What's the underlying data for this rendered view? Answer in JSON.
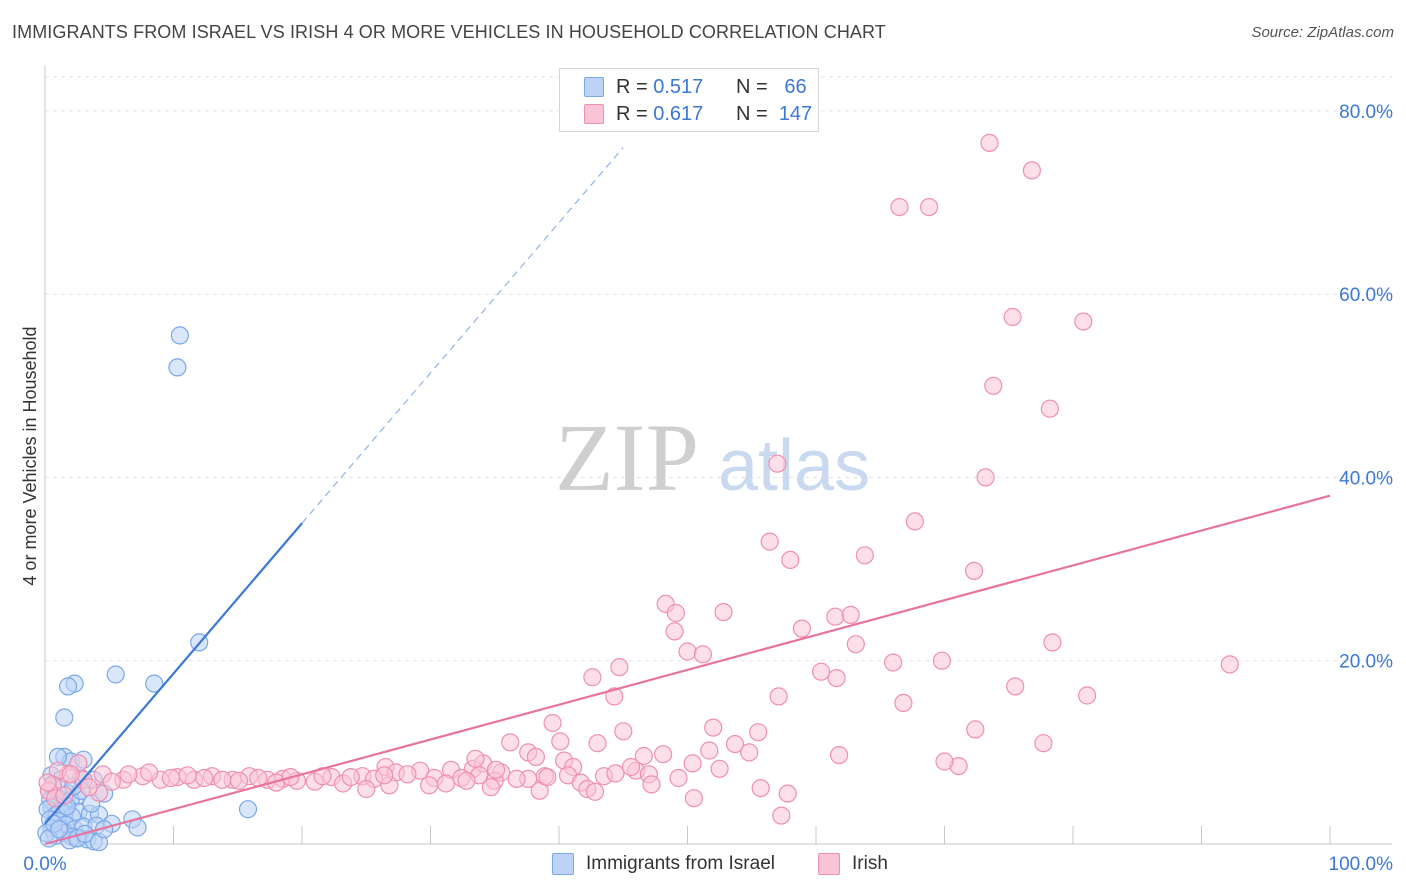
{
  "title": "IMMIGRANTS FROM ISRAEL VS IRISH 4 OR MORE VEHICLES IN HOUSEHOLD CORRELATION CHART",
  "source": "Source: ZipAtlas.com",
  "legend": {
    "r_label": "R =",
    "n_label": "N =",
    "rows": [
      {
        "name": "Immigrants from Israel",
        "r": "0.517",
        "n": "66",
        "color": "#7aa8e8",
        "fill": "#bcd3f5"
      },
      {
        "name": "Irish",
        "r": "0.617",
        "n": "147",
        "color": "#f08fb0",
        "fill": "#f9c5d6"
      }
    ]
  },
  "watermark": {
    "zip": "ZIP",
    "atlas": "atlas"
  },
  "chart_data": {
    "type": "scatter",
    "xlabel": "",
    "ylabel": "4 or more Vehicles in Household",
    "xlim": [
      0,
      100
    ],
    "ylim": [
      0,
      85
    ],
    "x_tick_labels": [
      "0.0%",
      "100.0%"
    ],
    "y_ticks": [
      20,
      40,
      60,
      80
    ],
    "y_tick_labels": [
      "20.0%",
      "40.0%",
      "60.0%",
      "80.0%"
    ],
    "grid": true,
    "series": [
      {
        "name": "Immigrants from Israel",
        "color": "#3c78d8",
        "trend": {
          "x0": 0,
          "y0": 2.2,
          "x1": 20,
          "y1": 35,
          "dashed_to_x": 45,
          "dashed_to_y": 76
        },
        "points": [
          [
            10.5,
            55.5
          ],
          [
            10.3,
            52
          ],
          [
            12,
            22
          ],
          [
            5.5,
            18.5
          ],
          [
            8.5,
            17.5
          ],
          [
            2.3,
            17.5
          ],
          [
            1.8,
            17.2
          ],
          [
            1.5,
            13.8
          ],
          [
            1.5,
            9.5
          ],
          [
            2,
            9
          ],
          [
            3,
            9.2
          ],
          [
            1,
            9.5
          ],
          [
            0.5,
            7.5
          ],
          [
            2.8,
            7.2
          ],
          [
            1.2,
            7
          ],
          [
            3.8,
            7
          ],
          [
            0.6,
            6.5
          ],
          [
            0.3,
            5.8
          ],
          [
            1.8,
            5.5
          ],
          [
            2.5,
            5.2
          ],
          [
            4.6,
            5.5
          ],
          [
            1,
            5
          ],
          [
            2,
            4.8
          ],
          [
            0.4,
            4.8
          ],
          [
            1.4,
            4.5
          ],
          [
            0.8,
            4.2
          ],
          [
            0.5,
            4
          ],
          [
            1.6,
            3.8
          ],
          [
            2.6,
            3.5
          ],
          [
            1.2,
            3.6
          ],
          [
            0.2,
            3.8
          ],
          [
            0.9,
            3.2
          ],
          [
            1.5,
            3.3
          ],
          [
            2.1,
            3
          ],
          [
            3.5,
            3.3
          ],
          [
            4.2,
            3.2
          ],
          [
            0.4,
            2.7
          ],
          [
            1,
            2.5
          ],
          [
            1.6,
            2.1
          ],
          [
            2.3,
            1.6
          ],
          [
            3,
            1.9
          ],
          [
            4,
            2
          ],
          [
            5.2,
            2.2
          ],
          [
            6.8,
            2.7
          ],
          [
            7.2,
            1.8
          ],
          [
            0.5,
            1.7
          ],
          [
            1.5,
            1.2
          ],
          [
            2.1,
            0.8
          ],
          [
            2.6,
            0.7
          ],
          [
            3.3,
            0.5
          ],
          [
            3.8,
            0.3
          ],
          [
            4.2,
            0.2
          ],
          [
            0.8,
            0.9
          ],
          [
            1.9,
            0.4
          ],
          [
            2.5,
            0.6
          ],
          [
            0.1,
            1.2
          ],
          [
            0.3,
            0.6
          ],
          [
            3.1,
            1.1
          ],
          [
            4.6,
            1.6
          ],
          [
            15.8,
            3.8
          ],
          [
            2.8,
            5.8
          ],
          [
            1.7,
            4.1
          ],
          [
            0.7,
            2.2
          ],
          [
            3.6,
            4.4
          ],
          [
            2.2,
            6.3
          ],
          [
            1.1,
            1.6
          ]
        ]
      },
      {
        "name": "Irish",
        "color": "#e8739c",
        "trend": {
          "x0": 0,
          "y0": 0,
          "x1": 100,
          "y1": 38
        },
        "points": [
          [
            73.5,
            76.5
          ],
          [
            76.8,
            73.5
          ],
          [
            66.5,
            69.5
          ],
          [
            68.8,
            69.5
          ],
          [
            75.3,
            57.5
          ],
          [
            80.8,
            57
          ],
          [
            73.8,
            50
          ],
          [
            78.2,
            47.5
          ],
          [
            57,
            41.5
          ],
          [
            73.2,
            40
          ],
          [
            67.7,
            35.2
          ],
          [
            56.4,
            33
          ],
          [
            58,
            31
          ],
          [
            63.8,
            31.5
          ],
          [
            72.3,
            29.8
          ],
          [
            48.3,
            26.2
          ],
          [
            52.8,
            25.3
          ],
          [
            49.1,
            25.2
          ],
          [
            58.9,
            23.5
          ],
          [
            61.5,
            24.8
          ],
          [
            62.7,
            25
          ],
          [
            49,
            23.2
          ],
          [
            50,
            21
          ],
          [
            51.2,
            20.7
          ],
          [
            63.1,
            21.8
          ],
          [
            78.4,
            22
          ],
          [
            66,
            19.8
          ],
          [
            69.8,
            20
          ],
          [
            44.7,
            19.3
          ],
          [
            42.6,
            18.2
          ],
          [
            60.4,
            18.8
          ],
          [
            61.6,
            18.1
          ],
          [
            75.5,
            17.2
          ],
          [
            92.2,
            19.6
          ],
          [
            44.3,
            16.1
          ],
          [
            57.1,
            16.1
          ],
          [
            81.1,
            16.2
          ],
          [
            66.8,
            15.4
          ],
          [
            39.5,
            13.2
          ],
          [
            45,
            12.3
          ],
          [
            55.5,
            12.2
          ],
          [
            72.4,
            12.5
          ],
          [
            40.1,
            11.2
          ],
          [
            43,
            11
          ],
          [
            53.7,
            10.9
          ],
          [
            77.7,
            11
          ],
          [
            36.2,
            11.1
          ],
          [
            51.7,
            10.2
          ],
          [
            54.8,
            10
          ],
          [
            37.6,
            10
          ],
          [
            38.2,
            9.5
          ],
          [
            46.6,
            9.6
          ],
          [
            48.1,
            9.8
          ],
          [
            40.4,
            9.1
          ],
          [
            61.8,
            9.7
          ],
          [
            71.1,
            8.5
          ],
          [
            70,
            9
          ],
          [
            29.2,
            8
          ],
          [
            33.3,
            8.2
          ],
          [
            34.1,
            8.8
          ],
          [
            31.6,
            8.1
          ],
          [
            41.1,
            8.4
          ],
          [
            46,
            8
          ],
          [
            52.5,
            8.2
          ],
          [
            26.5,
            8.4
          ],
          [
            27.3,
            7.8
          ],
          [
            35.5,
            7.8
          ],
          [
            37.6,
            7.1
          ],
          [
            32.4,
            7.2
          ],
          [
            24.7,
            7.4
          ],
          [
            40.7,
            7.5
          ],
          [
            47,
            7.6
          ],
          [
            22.3,
            7.3
          ],
          [
            21,
            6.8
          ],
          [
            18.5,
            7.1
          ],
          [
            17.3,
            7
          ],
          [
            15.9,
            7.4
          ],
          [
            14.6,
            7
          ],
          [
            13,
            7.4
          ],
          [
            11.6,
            7
          ],
          [
            10.3,
            7.3
          ],
          [
            9,
            7
          ],
          [
            7.6,
            7.4
          ],
          [
            6.1,
            7
          ],
          [
            4.5,
            7.6
          ],
          [
            3,
            7
          ],
          [
            2.6,
            8.8
          ],
          [
            1.8,
            7.6
          ],
          [
            1,
            8
          ],
          [
            0.6,
            6.4
          ],
          [
            0.3,
            5.8
          ],
          [
            0.8,
            5
          ],
          [
            1.5,
            5.3
          ],
          [
            4.2,
            5.6
          ],
          [
            5.2,
            6.8
          ],
          [
            6.5,
            7.6
          ],
          [
            8.1,
            7.8
          ],
          [
            9.8,
            7.2
          ],
          [
            11.1,
            7.5
          ],
          [
            12.4,
            7.2
          ],
          [
            13.8,
            7
          ],
          [
            15.1,
            6.9
          ],
          [
            16.6,
            7.2
          ],
          [
            18,
            6.7
          ],
          [
            19.6,
            6.9
          ],
          [
            21.6,
            7.4
          ],
          [
            23.2,
            6.6
          ],
          [
            23.8,
            7.3
          ],
          [
            25.6,
            7.1
          ],
          [
            28.2,
            7.6
          ],
          [
            30.3,
            7.2
          ],
          [
            31.2,
            6.6
          ],
          [
            33.8,
            7.5
          ],
          [
            35,
            6.9
          ],
          [
            36.7,
            7.1
          ],
          [
            38.9,
            7.4
          ],
          [
            41.7,
            6.7
          ],
          [
            43.5,
            7.4
          ],
          [
            26.8,
            6.4
          ],
          [
            25,
            6
          ],
          [
            34.7,
            6.2
          ],
          [
            42.2,
            6
          ],
          [
            47.2,
            6.5
          ],
          [
            38.5,
            5.8
          ],
          [
            50.5,
            5
          ],
          [
            42.8,
            5.7
          ],
          [
            57.8,
            5.5
          ],
          [
            55.7,
            6.1
          ],
          [
            50.4,
            8.8
          ],
          [
            49.3,
            7.2
          ],
          [
            26.4,
            7.5
          ],
          [
            32.8,
            6.9
          ],
          [
            35.1,
            8.1
          ],
          [
            29.9,
            6.4
          ],
          [
            3.4,
            6.2
          ],
          [
            2,
            7.6
          ],
          [
            0.2,
            6.7
          ],
          [
            57.3,
            3.1
          ],
          [
            45.6,
            8.4
          ],
          [
            19.1,
            7.3
          ],
          [
            44.4,
            7.7
          ],
          [
            39.1,
            7.3
          ],
          [
            52,
            12.7
          ],
          [
            33.5,
            9.3
          ]
        ]
      }
    ]
  }
}
